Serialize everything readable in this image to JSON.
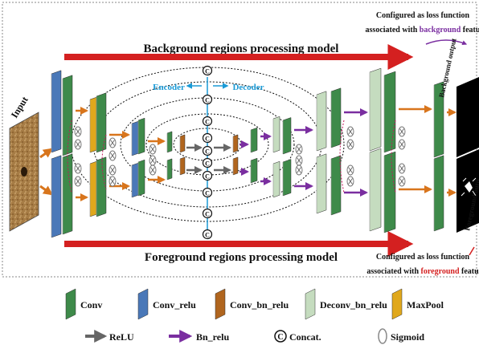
{
  "titles": {
    "background_model": "Background regions processing model",
    "foreground_model": "Foreground regions processing model",
    "encoder": "Encoder",
    "decoder": "Decoder",
    "input": "Input"
  },
  "notes": {
    "top_line1": "Configured as loss function",
    "top_line2_prefix": "associated with ",
    "top_line2_highlight": "background",
    "top_line2_suffix": " featu",
    "bottom_line1": "Configured as loss function",
    "bottom_line2_prefix": "associated with ",
    "bottom_line2_highlight": "foreground",
    "bottom_line2_suffix": " featu"
  },
  "outputs": {
    "background": "Background output",
    "foreground": "Foreground outp"
  },
  "concat_symbol": "C",
  "legend": {
    "layers": [
      {
        "label": "Conv",
        "color": "#3e8a4a"
      },
      {
        "label": "Conv_relu",
        "color": "#4a78b8"
      },
      {
        "label": "Conv_bn_relu",
        "color": "#b0651e"
      },
      {
        "label": "Deconv_bn_relu",
        "color": "#c5dcbf"
      },
      {
        "label": "MaxPool",
        "color": "#e0a81c"
      }
    ],
    "ops": [
      {
        "label": "ReLU",
        "icon": "gray-arrow"
      },
      {
        "label": "Bn_relu",
        "icon": "purple-arrow"
      },
      {
        "label": "Concat.",
        "icon": "concat-circle"
      },
      {
        "label": "Sigmoid",
        "icon": "sigmoid-ellipse"
      }
    ]
  },
  "colors": {
    "conv": "#3e8a4a",
    "conv_relu": "#4a78b8",
    "conv_bn_relu": "#b0651e",
    "deconv": "#c5dcbf",
    "maxpool": "#e0a81c",
    "title_arrow": "#d42020",
    "encoder_decoder": "#1a9ad6",
    "relu_arrow": "#d8751c",
    "bn_relu_arrow": "#7a2ea0",
    "background_text": "#7a2ea0",
    "foreground_text": "#d42020"
  }
}
